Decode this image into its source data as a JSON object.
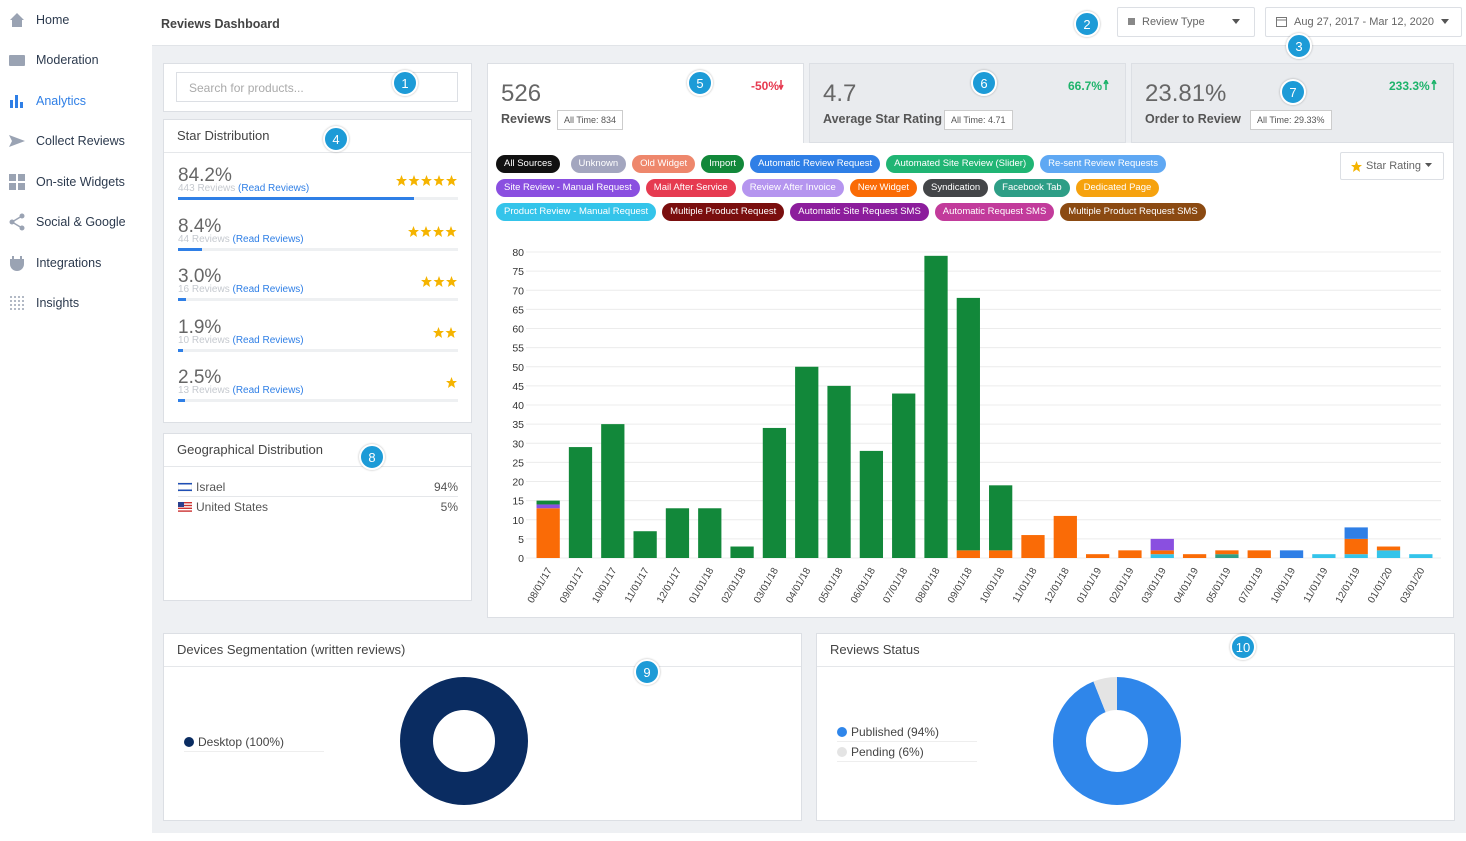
{
  "sidebar": {
    "items": [
      "Home",
      "Moderation",
      "Analytics",
      "Collect Reviews",
      "On-site Widgets",
      "Social & Google",
      "Integrations",
      "Insights"
    ]
  },
  "header": {
    "title": "Reviews Dashboard",
    "review_type": "Review Type",
    "date_range": "Aug 27, 2017 - Mar 12, 2020"
  },
  "callouts": [
    "1",
    "2",
    "3",
    "4",
    "5",
    "6",
    "7",
    "8",
    "9",
    "10"
  ],
  "search": {
    "placeholder": "Search for products..."
  },
  "star_distribution": {
    "title": "Star Distribution",
    "read_reviews": "(Read Reviews)",
    "rows": [
      {
        "percent": 84.2,
        "percent_label": "84.2%",
        "reviews": "443 Reviews",
        "stars": 5
      },
      {
        "percent": 8.4,
        "percent_label": "8.4%",
        "reviews": "44 Reviews",
        "stars": 4
      },
      {
        "percent": 3.0,
        "percent_label": "3.0%",
        "reviews": "16 Reviews",
        "stars": 3
      },
      {
        "percent": 1.9,
        "percent_label": "1.9%",
        "reviews": "10 Reviews",
        "stars": 2
      },
      {
        "percent": 2.5,
        "percent_label": "2.5%",
        "reviews": "13 Reviews",
        "stars": 1
      }
    ]
  },
  "geo_distribution": {
    "title": "Geographical Distribution",
    "rows": [
      {
        "country": "Israel",
        "share": "94%"
      },
      {
        "country": "United States",
        "share": "5%"
      }
    ]
  },
  "kpis": [
    {
      "value": "526",
      "label": "Reviews",
      "all_time": "All Time: 834",
      "change": "-50%"
    },
    {
      "value": "4.7",
      "label": "Average Star Rating",
      "all_time": "All Time: 4.71",
      "change": "66.7%"
    },
    {
      "value": "23.81%",
      "label": "Order to Review",
      "all_time": "All Time: 29.33%",
      "change": "233.3%"
    }
  ],
  "filters": {
    "all_sources": "All Sources",
    "star_rating": "Star Rating"
  },
  "chart_data": [
    {
      "type": "bar",
      "stacked": true,
      "grid": true,
      "categories": [
        "08/01/17",
        "09/01/17",
        "10/01/17",
        "11/01/17",
        "12/01/17",
        "01/01/18",
        "02/01/18",
        "03/01/18",
        "04/01/18",
        "05/01/18",
        "06/01/18",
        "07/01/18",
        "08/01/18",
        "09/01/18",
        "10/01/18",
        "11/01/18",
        "12/01/18",
        "01/01/19",
        "02/01/19",
        "03/01/19",
        "04/01/19",
        "05/01/19",
        "07/01/19",
        "10/01/19",
        "11/01/19",
        "12/01/19",
        "01/01/20",
        "03/01/20"
      ],
      "ylim": [
        0,
        80
      ],
      "yticks": [
        0,
        5,
        10,
        15,
        20,
        25,
        30,
        35,
        40,
        45,
        50,
        55,
        60,
        65,
        70,
        75,
        80
      ],
      "series": [
        {
          "name": "Unknown",
          "color": "#a3a6bf",
          "values": [
            null,
            null,
            null,
            null,
            null,
            null,
            null,
            null,
            null,
            null,
            null,
            null,
            null,
            null,
            null,
            null,
            null,
            null,
            null,
            null,
            null,
            null,
            null,
            null,
            null,
            null,
            null,
            null
          ]
        },
        {
          "name": "Old Widget",
          "color": "#ee876c",
          "values": [
            null,
            null,
            null,
            null,
            null,
            null,
            null,
            null,
            null,
            null,
            null,
            null,
            null,
            null,
            null,
            null,
            null,
            null,
            null,
            null,
            null,
            null,
            null,
            null,
            null,
            null,
            null,
            null
          ]
        },
        {
          "name": "Import",
          "color": "#12883a",
          "values": [
            1,
            29,
            35,
            7,
            13,
            13,
            3,
            34,
            50,
            45,
            28,
            43,
            79,
            66,
            17,
            null,
            null,
            null,
            null,
            null,
            null,
            null,
            null,
            null,
            null,
            null,
            null,
            null
          ]
        },
        {
          "name": "Automatic Review Request",
          "color": "#2f7fe6",
          "values": [
            null,
            null,
            null,
            null,
            null,
            null,
            null,
            null,
            null,
            null,
            null,
            null,
            null,
            null,
            null,
            null,
            null,
            null,
            null,
            null,
            null,
            null,
            null,
            2,
            null,
            3,
            null,
            null
          ]
        },
        {
          "name": "Automated Site Review (Slider)",
          "color": "#20b574",
          "values": [
            null,
            null,
            null,
            null,
            null,
            null,
            null,
            null,
            null,
            null,
            null,
            null,
            null,
            null,
            null,
            null,
            null,
            null,
            null,
            null,
            null,
            null,
            null,
            null,
            null,
            null,
            null,
            null
          ]
        },
        {
          "name": "Re-sent Review Requests",
          "color": "#5fa8f3",
          "values": [
            null,
            null,
            null,
            null,
            null,
            null,
            null,
            null,
            null,
            null,
            null,
            null,
            null,
            null,
            null,
            null,
            null,
            null,
            null,
            null,
            null,
            null,
            null,
            null,
            null,
            null,
            null,
            null
          ]
        },
        {
          "name": "Site Review - Manual Request",
          "color": "#8a4fe0",
          "values": [
            1,
            null,
            null,
            null,
            null,
            null,
            null,
            null,
            null,
            null,
            null,
            null,
            null,
            null,
            null,
            null,
            null,
            null,
            null,
            3,
            null,
            null,
            null,
            null,
            null,
            null,
            null,
            null
          ]
        },
        {
          "name": "Mail After Service",
          "color": "#e63a50",
          "values": [
            null,
            null,
            null,
            null,
            null,
            null,
            null,
            null,
            null,
            null,
            null,
            null,
            null,
            null,
            null,
            null,
            null,
            null,
            null,
            null,
            null,
            null,
            null,
            null,
            null,
            null,
            null,
            null
          ]
        },
        {
          "name": "Review After Invoice",
          "color": "#b595ef",
          "values": [
            null,
            null,
            null,
            null,
            null,
            null,
            null,
            null,
            null,
            null,
            null,
            null,
            null,
            null,
            null,
            null,
            null,
            null,
            null,
            null,
            null,
            null,
            null,
            null,
            null,
            null,
            null,
            null
          ]
        },
        {
          "name": "New Widget",
          "color": "#fa6b06",
          "values": [
            13,
            null,
            null,
            null,
            null,
            null,
            null,
            null,
            null,
            null,
            null,
            null,
            null,
            2,
            2,
            6,
            11,
            1,
            2,
            1,
            1,
            1,
            2,
            null,
            null,
            4,
            1,
            null
          ]
        },
        {
          "name": "Syndication",
          "color": "#434548",
          "values": [
            null,
            null,
            null,
            null,
            null,
            null,
            null,
            null,
            null,
            null,
            null,
            null,
            null,
            null,
            null,
            null,
            null,
            null,
            null,
            null,
            null,
            null,
            null,
            null,
            null,
            null,
            null,
            null
          ]
        },
        {
          "name": "Facebook Tab",
          "color": "#2e9e86",
          "values": [
            null,
            null,
            null,
            null,
            null,
            null,
            null,
            null,
            null,
            null,
            null,
            null,
            null,
            null,
            null,
            null,
            null,
            null,
            null,
            null,
            null,
            1,
            null,
            null,
            null,
            null,
            null,
            null
          ]
        },
        {
          "name": "Dedicated Page",
          "color": "#f6a20e",
          "values": [
            null,
            null,
            null,
            null,
            null,
            null,
            null,
            null,
            null,
            null,
            null,
            null,
            null,
            null,
            null,
            null,
            null,
            null,
            null,
            null,
            null,
            null,
            null,
            null,
            null,
            null,
            null,
            null
          ]
        },
        {
          "name": "Product Review - Manual Request",
          "color": "#34c4ea",
          "values": [
            null,
            null,
            null,
            null,
            null,
            null,
            null,
            null,
            null,
            null,
            null,
            null,
            null,
            null,
            null,
            null,
            null,
            null,
            null,
            1,
            null,
            null,
            null,
            null,
            1,
            1,
            2,
            1
          ]
        },
        {
          "name": "Multiple Product Request",
          "color": "#7a0e0e",
          "values": [
            null,
            null,
            null,
            null,
            null,
            null,
            null,
            null,
            null,
            null,
            null,
            null,
            null,
            null,
            null,
            null,
            null,
            null,
            null,
            null,
            null,
            null,
            null,
            null,
            null,
            null,
            null,
            null
          ]
        },
        {
          "name": "Automatic Site Request SMS",
          "color": "#8c1d9c",
          "values": [
            null,
            null,
            null,
            null,
            null,
            null,
            null,
            null,
            null,
            null,
            null,
            null,
            null,
            null,
            null,
            null,
            null,
            null,
            null,
            null,
            null,
            null,
            null,
            null,
            null,
            null,
            null,
            null
          ]
        },
        {
          "name": "Automatic Request SMS",
          "color": "#c23b9b",
          "values": [
            null,
            null,
            null,
            null,
            null,
            null,
            null,
            null,
            null,
            null,
            null,
            null,
            null,
            null,
            null,
            null,
            null,
            null,
            null,
            null,
            null,
            null,
            null,
            null,
            null,
            null,
            null,
            null
          ]
        },
        {
          "name": "Multiple Product Request SMS",
          "color": "#8b4a12",
          "values": [
            null,
            null,
            null,
            null,
            null,
            null,
            null,
            null,
            null,
            null,
            null,
            null,
            null,
            null,
            null,
            null,
            null,
            null,
            null,
            null,
            null,
            null,
            null,
            null,
            null,
            null,
            null,
            null
          ]
        }
      ]
    },
    {
      "type": "donut",
      "title": "Devices Segmentation (written reviews)",
      "categories": [
        "Desktop (100%)"
      ],
      "values": [
        100
      ],
      "colors": [
        "#0a2c61"
      ]
    },
    {
      "type": "donut",
      "title": "Reviews Status",
      "categories": [
        "Published (94%)",
        "Pending (6%)"
      ],
      "values": [
        94,
        6
      ],
      "colors": [
        "#2f86ea",
        "#e4e4e4"
      ]
    }
  ]
}
